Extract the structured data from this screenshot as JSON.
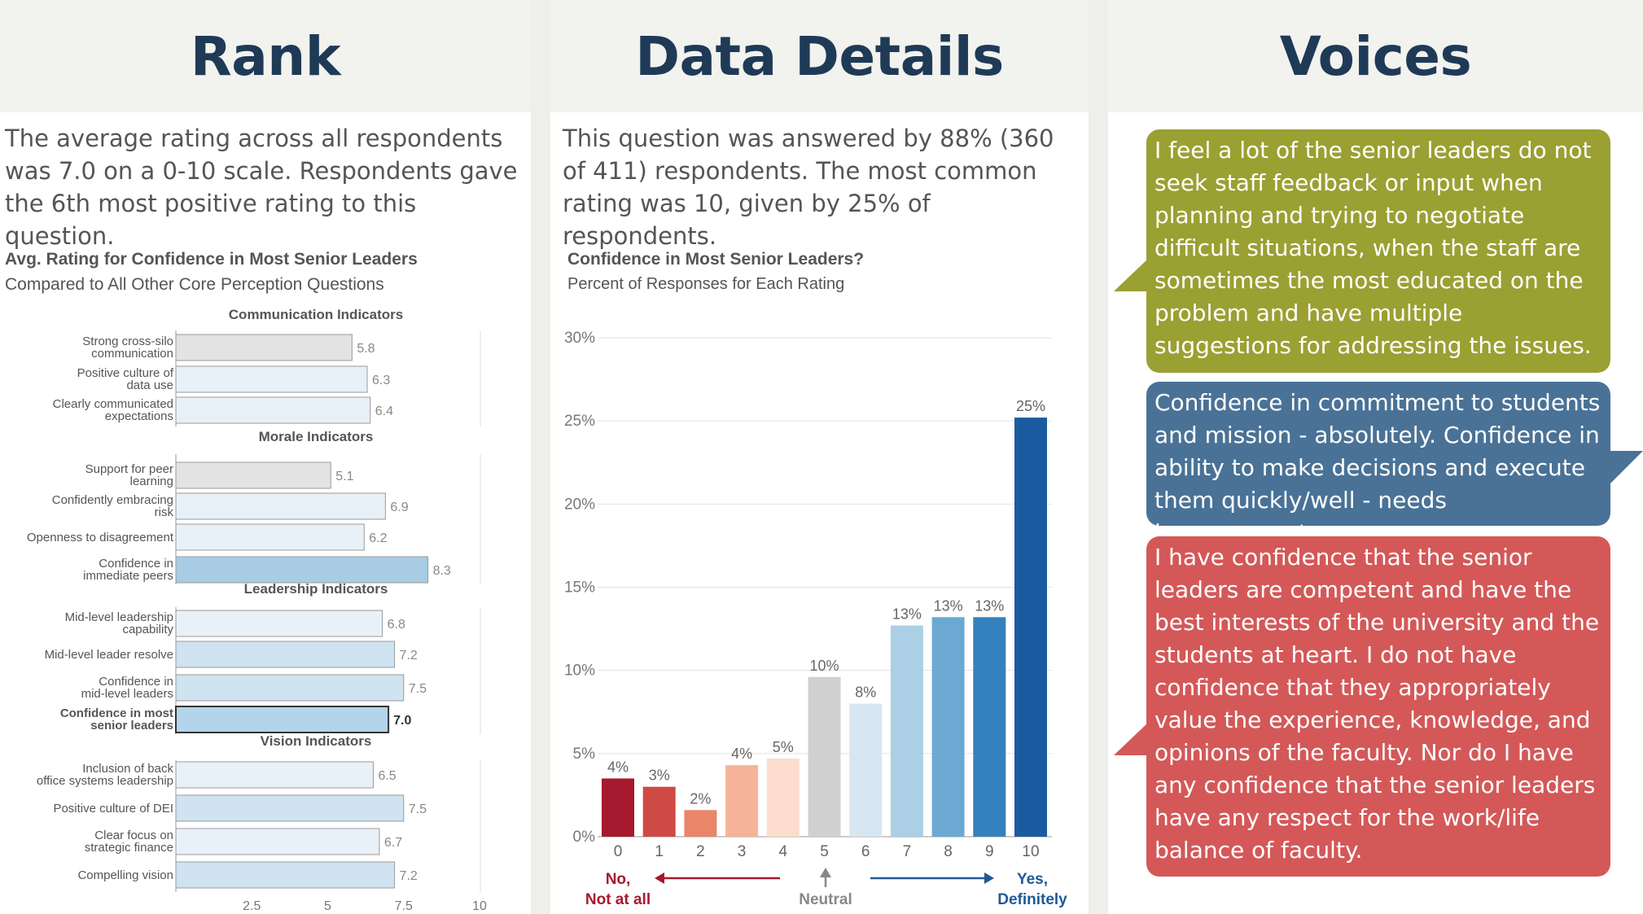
{
  "panels": {
    "rank": {
      "title": "Rank",
      "summary": "The average rating across all respondents was 7.0 on a 0-10 scale. Respondents gave the 6th most positive rating to this question."
    },
    "details": {
      "title": "Data Details",
      "summary": "This question was answered by 88% (360 of 411) respondents. The most common rating was 10, given by 25% of respondents."
    },
    "voices": {
      "title": "Voices",
      "quotes": [
        {
          "text": "I feel a lot of the senior leaders do not seek staff feedback or input when planning and trying to negotiate difficult situations, when the staff are sometimes the most educated on the problem and have multiple suggestions for addressing the issues.",
          "color": "#9aa032"
        },
        {
          "text": "Confidence in commitment to students and mission - absolutely. Confidence in ability to make decisions and execute them quickly/well - needs improvement.",
          "color": "#4a7296"
        },
        {
          "text": "I have confidence that the senior leaders are competent and have the best interests of the university and the students at heart. I do not have confidence that they appropriately value the experience, knowledge, and opinions of the faculty. Nor do I have any confidence that the senior leaders have any respect for the work/life balance of faculty.",
          "color": "#d45858"
        }
      ]
    }
  },
  "chart_data": [
    {
      "type": "bar",
      "orientation": "horizontal",
      "title": "Avg. Rating for Confidence in Most Senior Leaders",
      "subtitle": "Compared to All Other Core Perception Questions",
      "xlim": [
        0,
        10
      ],
      "xticks": [
        "2.5",
        "5",
        "7.5",
        "10"
      ],
      "groups": [
        {
          "name": "Communication Indicators",
          "items": [
            {
              "label": "Strong cross-silo communication",
              "value": 5.8,
              "value_label": "5.8",
              "fill": "#e3e3e3"
            },
            {
              "label": "Positive culture of data use",
              "value": 6.3,
              "value_label": "6.3",
              "fill": "#e8f0f8"
            },
            {
              "label": "Clearly communicated expectations",
              "value": 6.4,
              "value_label": "6.4",
              "fill": "#e8f0f8"
            }
          ]
        },
        {
          "name": "Morale Indicators",
          "items": [
            {
              "label": "Support for peer learning",
              "value": 5.1,
              "value_label": "5.1",
              "fill": "#e3e3e3"
            },
            {
              "label": "Confidently embracing risk",
              "value": 6.9,
              "value_label": "6.9",
              "fill": "#e8f0f8"
            },
            {
              "label": "Openness to disagreement",
              "value": 6.2,
              "value_label": "6.2",
              "fill": "#e8f0f8"
            },
            {
              "label": "Confidence in immediate peers",
              "value": 8.3,
              "value_label": "8.3",
              "fill": "#a8cce4"
            }
          ]
        },
        {
          "name": "Leadership Indicators",
          "items": [
            {
              "label": "Mid-level leadership capability",
              "value": 6.8,
              "value_label": "6.8",
              "fill": "#e8f0f8"
            },
            {
              "label": "Mid-level leader resolve",
              "value": 7.2,
              "value_label": "7.2",
              "fill": "#cfe3f1"
            },
            {
              "label": "Confidence in mid-level leaders",
              "value": 7.5,
              "value_label": "7.5",
              "fill": "#cfe3f1"
            },
            {
              "label": "Confidence in most senior leaders",
              "value": 7.0,
              "value_label": "7.0",
              "fill": "#b3d4ea",
              "highlight": true
            }
          ]
        },
        {
          "name": "Vision Indicators",
          "items": [
            {
              "label": "Inclusion of back office systems leadership",
              "value": 6.5,
              "value_label": "6.5",
              "fill": "#e8f0f8"
            },
            {
              "label": "Positive culture of DEI",
              "value": 7.5,
              "value_label": "7.5",
              "fill": "#cfe3f1"
            },
            {
              "label": "Clear focus on strategic finance",
              "value": 6.7,
              "value_label": "6.7",
              "fill": "#e8f0f8"
            },
            {
              "label": "Compelling vision",
              "value": 7.2,
              "value_label": "7.2",
              "fill": "#cfe3f1"
            }
          ]
        }
      ]
    },
    {
      "type": "bar",
      "title": "Confidence in Most Senior Leaders?",
      "subtitle": "Percent of Responses for Each Rating",
      "categories": [
        "0",
        "1",
        "2",
        "3",
        "4",
        "5",
        "6",
        "7",
        "8",
        "9",
        "10"
      ],
      "values": [
        3.5,
        3.0,
        1.6,
        4.3,
        4.7,
        9.6,
        8.0,
        12.7,
        13.2,
        13.2,
        25.2
      ],
      "value_labels": [
        "4%",
        "3%",
        "2%",
        "4%",
        "5%",
        "10%",
        "8%",
        "13%",
        "13%",
        "13%",
        "25%"
      ],
      "colors": [
        "#a6192e",
        "#cd4a45",
        "#e9866a",
        "#f5b49a",
        "#fbdccd",
        "#d0d0d0",
        "#d8e6f1",
        "#abcfe5",
        "#6ba9d3",
        "#3581bd",
        "#1a5ba0"
      ],
      "ylim": [
        0,
        30
      ],
      "yticks": [
        "0%",
        "5%",
        "10%",
        "15%",
        "20%",
        "25%",
        "30%"
      ],
      "grid": true,
      "scale_labels": {
        "low": "No,",
        "low2": "Not at all",
        "mid": "Neutral",
        "high": "Yes,",
        "high2": "Definitely"
      }
    }
  ]
}
